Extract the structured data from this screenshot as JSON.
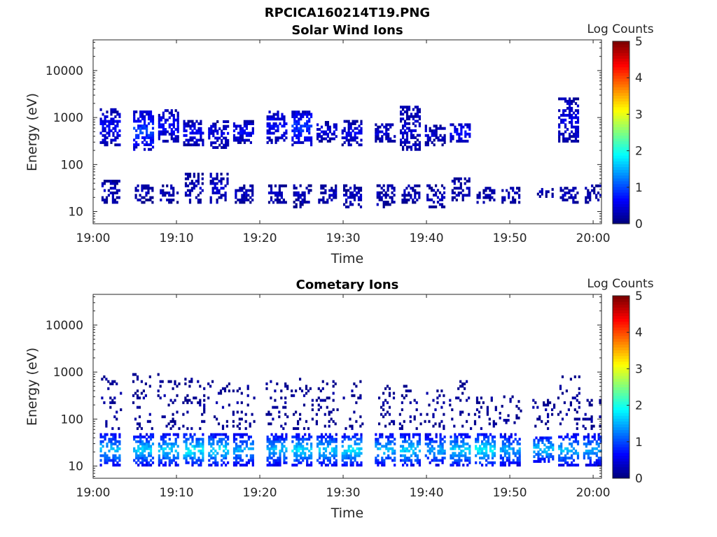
{
  "figure_title": "RPCICA160214T19.PNG",
  "colormap": "jet",
  "chart_data": [
    {
      "type": "heatmap",
      "title": "Solar Wind Ions",
      "xlabel": "Time",
      "ylabel": "Energy (eV)",
      "x_ticks": [
        "19:00",
        "19:10",
        "19:20",
        "19:30",
        "19:40",
        "19:50",
        "20:00"
      ],
      "xlim": [
        "19:00",
        "20:01"
      ],
      "y_scale": "log",
      "y_ticks": [
        "10",
        "100",
        "1000",
        "10000"
      ],
      "ylim": [
        5.5,
        45000
      ],
      "colorbar": {
        "label": "Log Counts",
        "ticks": [
          "0",
          "1",
          "2",
          "3",
          "4",
          "5"
        ],
        "range": [
          0,
          5
        ]
      },
      "bursts": [
        {
          "t": "19:02",
          "emin": 250,
          "emax": 1500,
          "level": 0.6
        },
        {
          "t": "19:06",
          "emin": 200,
          "emax": 1300,
          "level": 1.0
        },
        {
          "t": "19:09",
          "emin": 300,
          "emax": 1400,
          "level": 0.6
        },
        {
          "t": "19:12",
          "emin": 250,
          "emax": 800,
          "level": 0.6
        },
        {
          "t": "19:15",
          "emin": 220,
          "emax": 800,
          "level": 0.5
        },
        {
          "t": "19:18",
          "emin": 280,
          "emax": 800,
          "level": 0.6
        },
        {
          "t": "19:22",
          "emin": 280,
          "emax": 1400,
          "level": 0.6
        },
        {
          "t": "19:25",
          "emin": 250,
          "emax": 1400,
          "level": 0.9
        },
        {
          "t": "19:28",
          "emin": 300,
          "emax": 800,
          "level": 0.5
        },
        {
          "t": "19:31",
          "emin": 250,
          "emax": 800,
          "level": 0.5
        },
        {
          "t": "19:35",
          "emin": 300,
          "emax": 700,
          "level": 0.4
        },
        {
          "t": "19:38",
          "emin": 200,
          "emax": 1600,
          "level": 0.4
        },
        {
          "t": "19:41",
          "emin": 250,
          "emax": 700,
          "level": 0.3
        },
        {
          "t": "19:44",
          "emin": 300,
          "emax": 700,
          "level": 0.7
        },
        {
          "t": "19:57",
          "emin": 300,
          "emax": 2500,
          "level": 0.5
        }
      ],
      "low_bursts": [
        {
          "t": "19:02",
          "emin": 15,
          "emax": 45,
          "level": 0.3
        },
        {
          "t": "19:06",
          "emin": 15,
          "emax": 35,
          "level": 0.3
        },
        {
          "t": "19:09",
          "emin": 15,
          "emax": 35,
          "level": 0.3
        },
        {
          "t": "19:12",
          "emin": 15,
          "emax": 60,
          "level": 0.3
        },
        {
          "t": "19:15",
          "emin": 15,
          "emax": 60,
          "level": 0.4
        },
        {
          "t": "19:18",
          "emin": 15,
          "emax": 35,
          "level": 0.3
        },
        {
          "t": "19:22",
          "emin": 15,
          "emax": 35,
          "level": 0.3
        },
        {
          "t": "19:25",
          "emin": 12,
          "emax": 35,
          "level": 0.3
        },
        {
          "t": "19:28",
          "emin": 15,
          "emax": 35,
          "level": 0.3
        },
        {
          "t": "19:31",
          "emin": 12,
          "emax": 35,
          "level": 0.3
        },
        {
          "t": "19:35",
          "emin": 12,
          "emax": 35,
          "level": 0.3
        },
        {
          "t": "19:38",
          "emin": 15,
          "emax": 35,
          "level": 0.3
        },
        {
          "t": "19:41",
          "emin": 12,
          "emax": 35,
          "level": 0.3
        },
        {
          "t": "19:44",
          "emin": 15,
          "emax": 50,
          "level": 0.3
        },
        {
          "t": "19:47",
          "emin": 15,
          "emax": 30,
          "level": 0.3
        },
        {
          "t": "19:50",
          "emin": 15,
          "emax": 30,
          "level": 0.3
        },
        {
          "t": "19:54",
          "emin": 20,
          "emax": 30,
          "level": 0.3
        },
        {
          "t": "19:57",
          "emin": 15,
          "emax": 30,
          "level": 0.3
        },
        {
          "t": "20:00",
          "emin": 15,
          "emax": 35,
          "level": 0.3
        }
      ]
    },
    {
      "type": "heatmap",
      "title": "Cometary Ions",
      "xlabel": "Time",
      "ylabel": "Energy (eV)",
      "x_ticks": [
        "19:00",
        "19:10",
        "19:20",
        "19:30",
        "19:40",
        "19:50",
        "20:00"
      ],
      "xlim": [
        "19:00",
        "20:01"
      ],
      "y_scale": "log",
      "y_ticks": [
        "10",
        "100",
        "1000",
        "10000"
      ],
      "ylim": [
        5.5,
        45000
      ],
      "colorbar": {
        "label": "Log Counts",
        "ticks": [
          "0",
          "1",
          "2",
          "3",
          "4",
          "5"
        ],
        "range": [
          0,
          5
        ]
      },
      "bursts": [
        {
          "t": "19:02",
          "emin": 10,
          "emax": 45,
          "level": 1.6
        },
        {
          "t": "19:06",
          "emin": 10,
          "emax": 45,
          "level": 1.7
        },
        {
          "t": "19:09",
          "emin": 10,
          "emax": 45,
          "level": 1.7
        },
        {
          "t": "19:12",
          "emin": 10,
          "emax": 45,
          "level": 1.9
        },
        {
          "t": "19:15",
          "emin": 10,
          "emax": 45,
          "level": 1.8
        },
        {
          "t": "19:18",
          "emin": 10,
          "emax": 45,
          "level": 1.5
        },
        {
          "t": "19:22",
          "emin": 10,
          "emax": 45,
          "level": 1.6
        },
        {
          "t": "19:25",
          "emin": 10,
          "emax": 45,
          "level": 1.8
        },
        {
          "t": "19:28",
          "emin": 10,
          "emax": 45,
          "level": 1.7
        },
        {
          "t": "19:31",
          "emin": 10,
          "emax": 45,
          "level": 1.8
        },
        {
          "t": "19:35",
          "emin": 10,
          "emax": 45,
          "level": 1.6
        },
        {
          "t": "19:38",
          "emin": 10,
          "emax": 45,
          "level": 1.7
        },
        {
          "t": "19:41",
          "emin": 10,
          "emax": 45,
          "level": 1.5
        },
        {
          "t": "19:44",
          "emin": 10,
          "emax": 45,
          "level": 1.7
        },
        {
          "t": "19:47",
          "emin": 10,
          "emax": 45,
          "level": 1.9
        },
        {
          "t": "19:50",
          "emin": 10,
          "emax": 45,
          "level": 1.5
        },
        {
          "t": "19:54",
          "emin": 12,
          "emax": 40,
          "level": 1.7
        },
        {
          "t": "19:57",
          "emin": 10,
          "emax": 45,
          "level": 1.6
        },
        {
          "t": "20:00",
          "emin": 10,
          "emax": 45,
          "level": 1.5
        }
      ],
      "upper_scatter": [
        {
          "t": "19:02",
          "emin": 60,
          "emax": 800
        },
        {
          "t": "19:06",
          "emin": 60,
          "emax": 900
        },
        {
          "t": "19:09",
          "emin": 60,
          "emax": 900
        },
        {
          "t": "19:12",
          "emin": 60,
          "emax": 800
        },
        {
          "t": "19:15",
          "emin": 60,
          "emax": 600
        },
        {
          "t": "19:18",
          "emin": 60,
          "emax": 600
        },
        {
          "t": "19:22",
          "emin": 60,
          "emax": 600
        },
        {
          "t": "19:25",
          "emin": 60,
          "emax": 700
        },
        {
          "t": "19:28",
          "emin": 60,
          "emax": 600
        },
        {
          "t": "19:31",
          "emin": 60,
          "emax": 600
        },
        {
          "t": "19:35",
          "emin": 60,
          "emax": 500
        },
        {
          "t": "19:38",
          "emin": 60,
          "emax": 500
        },
        {
          "t": "19:41",
          "emin": 60,
          "emax": 400
        },
        {
          "t": "19:44",
          "emin": 60,
          "emax": 600
        },
        {
          "t": "19:47",
          "emin": 60,
          "emax": 300
        },
        {
          "t": "19:50",
          "emin": 80,
          "emax": 300
        },
        {
          "t": "19:54",
          "emin": 60,
          "emax": 250
        },
        {
          "t": "19:57",
          "emin": 60,
          "emax": 800
        },
        {
          "t": "20:00",
          "emin": 60,
          "emax": 250
        }
      ]
    }
  ]
}
